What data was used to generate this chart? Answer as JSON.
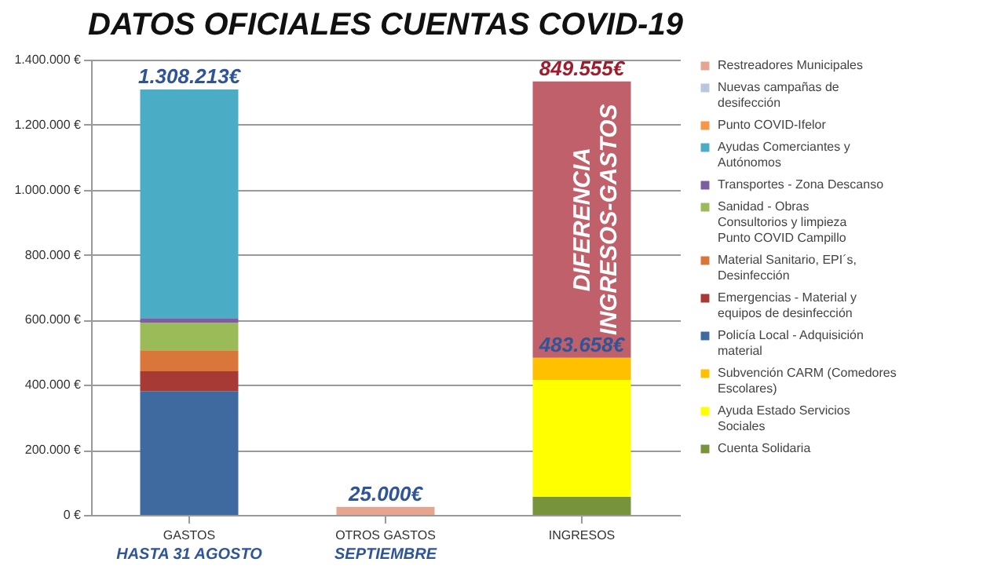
{
  "chart_data": {
    "type": "bar",
    "title": "DATOS OFICIALES CUENTAS COVID-19",
    "stacked": true,
    "categories": [
      "GASTOS",
      "OTROS GASTOS",
      "INGRESOS"
    ],
    "series": [
      {
        "name": "Cuenta Solidaria",
        "color": "#77933c",
        "values": [
          null,
          null,
          56000
        ]
      },
      {
        "name": "Ayuda Estado Servicios Sociales",
        "color": "#ffff00",
        "values": [
          null,
          null,
          359000
        ]
      },
      {
        "name": "Subvención CARM (Comedores Escolares)",
        "color": "#ffc000",
        "values": [
          null,
          null,
          68658
        ]
      },
      {
        "name": "Policía Local - Adquisición material",
        "color": "#3f6aa0",
        "values": [
          381000,
          null,
          null
        ]
      },
      {
        "name": "Emergencias - Material y equipos de desinfección",
        "color": "#a83a36",
        "values": [
          61000,
          null,
          null
        ]
      },
      {
        "name": "Material Sanitario, EPI´s, Desinfección",
        "color": "#d9773a",
        "values": [
          64000,
          null,
          null
        ]
      },
      {
        "name": "Sanidad - Obras Consultorios y limpieza Punto COVID Campillo",
        "color": "#9bbb59",
        "values": [
          85000,
          null,
          null
        ]
      },
      {
        "name": "Transportes - Zona Descanso",
        "color": "#7c5fa0",
        "values": [
          14000,
          null,
          null
        ]
      },
      {
        "name": "Ayudas Comerciantes y Autónomos",
        "color": "#4bacc6",
        "values": [
          703213,
          null,
          null
        ]
      },
      {
        "name": "Punto COVID-Ifelor",
        "color": "#f79646",
        "values": [
          null,
          null,
          null
        ]
      },
      {
        "name": "Nuevas campañas de desifección",
        "color": "#b9c7dd",
        "values": [
          null,
          null,
          null
        ]
      },
      {
        "name": "Restreadores Municipales",
        "color": "#e6a591",
        "values": [
          null,
          25000,
          null
        ]
      },
      {
        "name": "DIFERENCIA INGRESOS-GASTOS",
        "color": "#c0606a",
        "values": [
          null,
          null,
          849555
        ],
        "base": [
          null,
          null,
          483658
        ],
        "value_labels": [
          null,
          null,
          "849.555€"
        ]
      }
    ],
    "totals": [
      "1.308.213€",
      "25.000€",
      null
    ],
    "annotations": [
      "HASTA 31 AGOSTO",
      "SEPTIEMBRE",
      {
        "text": "483.658€",
        "x": "INGRESOS",
        "y": 483658
      }
    ],
    "ylim": [
      0,
      1400000
    ],
    "yticks": [
      {
        "value": 0,
        "label": "0 €"
      },
      {
        "value": 200000,
        "label": "200.000 €"
      },
      {
        "value": 400000,
        "label": "400.000 €"
      },
      {
        "value": 600000,
        "label": "600.000 €"
      },
      {
        "value": 800000,
        "label": "800.000 €"
      },
      {
        "value": 1000000,
        "label": "1.000.000 €"
      },
      {
        "value": 1200000,
        "label": "1.200.000 €"
      },
      {
        "value": 1400000,
        "label": "1.400.000 €"
      }
    ],
    "grid": "y",
    "legend": "right"
  }
}
